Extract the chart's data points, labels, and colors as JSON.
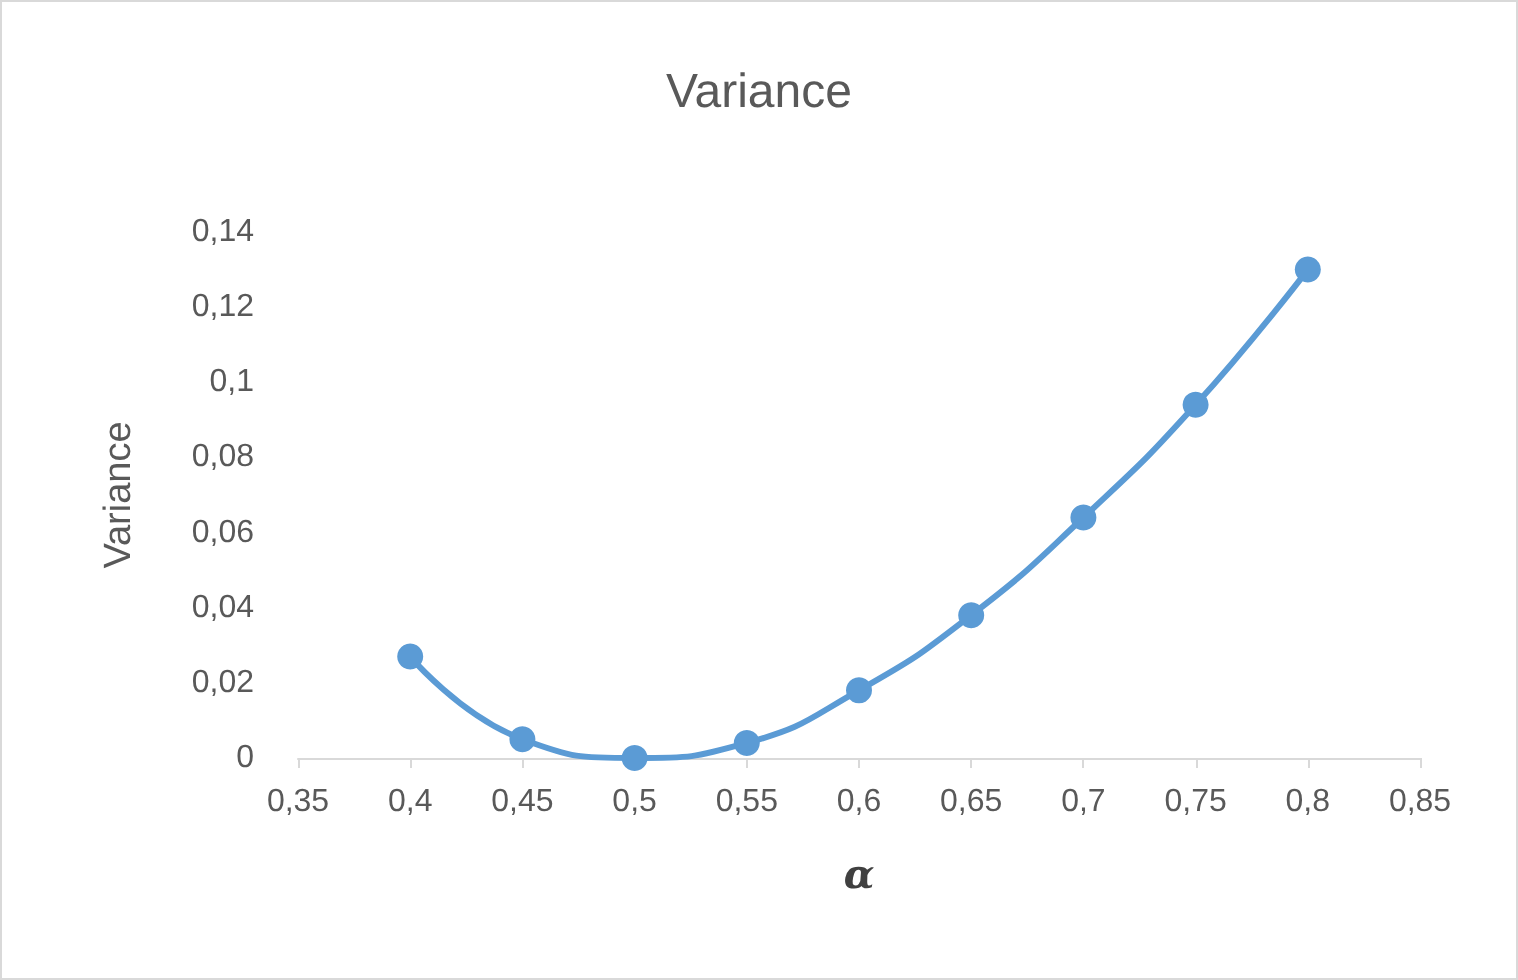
{
  "chart_data": {
    "type": "line",
    "title": "Variance",
    "xlabel": "α",
    "ylabel": "Variance",
    "x": [
      0.4,
      0.45,
      0.5,
      0.55,
      0.6,
      0.65,
      0.7,
      0.75,
      0.8
    ],
    "series": [
      {
        "color": "#5b9bd5",
        "values": [
          0.027,
          0.005,
          0,
          0.004,
          0.018,
          0.038,
          0.064,
          0.094,
          0.13
        ]
      }
    ],
    "xlim": [
      0.35,
      0.85
    ],
    "xticks": [
      {
        "value": 0.35,
        "label": "0,35"
      },
      {
        "value": 0.4,
        "label": "0,4"
      },
      {
        "value": 0.45,
        "label": "0,45"
      },
      {
        "value": 0.5,
        "label": "0,5"
      },
      {
        "value": 0.55,
        "label": "0,55"
      },
      {
        "value": 0.6,
        "label": "0,6"
      },
      {
        "value": 0.65,
        "label": "0,65"
      },
      {
        "value": 0.7,
        "label": "0,7"
      },
      {
        "value": 0.75,
        "label": "0,75"
      },
      {
        "value": 0.8,
        "label": "0,8"
      },
      {
        "value": 0.85,
        "label": "0,85"
      }
    ],
    "ylim": [
      0,
      0.14
    ],
    "yticks": [
      0,
      {
        "value": 0.02,
        "label": "0,02"
      },
      {
        "value": 0.04,
        "label": "0,04"
      },
      {
        "value": 0.06,
        "label": "0,06"
      },
      {
        "value": 0.08,
        "label": "0,08"
      },
      {
        "value": 0.1,
        "label": "0,1"
      },
      {
        "value": 0.12,
        "label": "0,12"
      },
      {
        "value": 0.14,
        "label": "0,14"
      }
    ],
    "grid": false,
    "marker": "circle",
    "line_style": "solid"
  }
}
